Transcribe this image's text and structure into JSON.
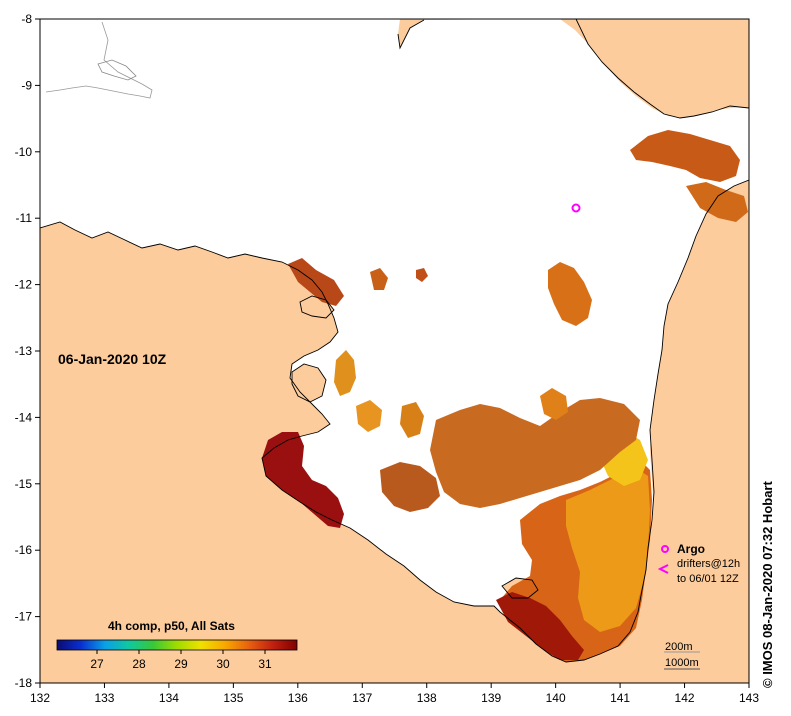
{
  "map": {
    "timestamp": "06-Jan-2020 10Z",
    "credit": "© IMOS 08-Jan-2020 07:32 Hobart",
    "x_ticks": [
      "132",
      "133",
      "134",
      "135",
      "136",
      "137",
      "138",
      "139",
      "140",
      "141",
      "142",
      "143"
    ],
    "y_ticks": [
      "-8",
      "-9",
      "-10",
      "-11",
      "-12",
      "-13",
      "-14",
      "-15",
      "-16",
      "-17",
      "-18"
    ],
    "colorbar": {
      "title": "4h comp, p50, All Sats",
      "ticks": [
        "27",
        "28",
        "29",
        "30",
        "31"
      ],
      "colors": [
        "#0b0b73",
        "#0a2fd0",
        "#0aa0e6",
        "#10c8a0",
        "#38c838",
        "#a0dc00",
        "#f0e000",
        "#f8a800",
        "#e86010",
        "#c02010",
        "#800000"
      ]
    },
    "legend": {
      "argo_label": "Argo",
      "drifters_label_1": "drifters@12h",
      "drifters_label_2": "to 06/01 12Z",
      "argo_color": "#ff00ff"
    },
    "isobaths": [
      "200m",
      "1000m"
    ],
    "colors": {
      "land": "#fccc9c",
      "ocean": "#ffffff"
    }
  }
}
